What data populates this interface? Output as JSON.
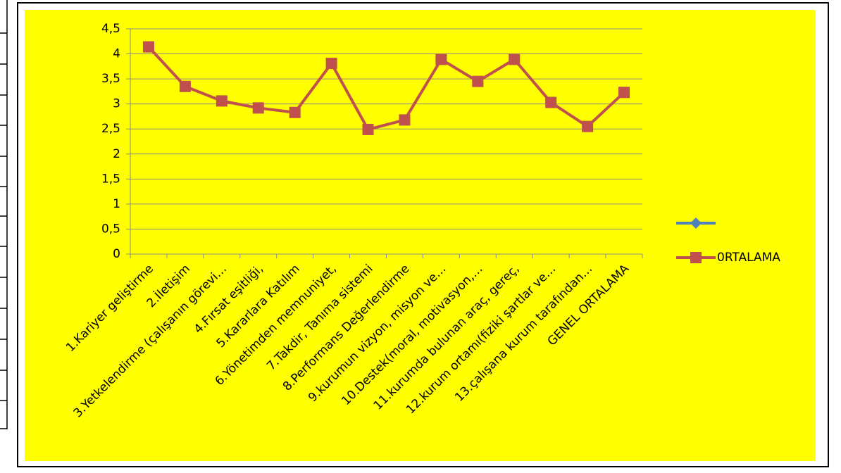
{
  "chart_data": {
    "type": "line",
    "categories": [
      "1.Kariyer geliştirme",
      "2.İletişim",
      "3.Yetkelendirme (çalışanın görevi…",
      "4.Fırsat eşitliği,",
      "5.Kararlara Katılım",
      "6.Yönetimden memnuniyet,",
      "7.Takdir, Tanıma sistemi",
      "8.Performans Değerlendirme",
      "9.kurumun vizyon, misyon ve…",
      "10.Destek(moral, motivasyon,…",
      "11.kurumda bulunan araç, gereç,",
      "12.kurum ortamı(fiziki şartlar ve…",
      "13.çalışana kurum tarafından…",
      "GENEL ORTALAMA"
    ],
    "series": [
      {
        "name": null,
        "color": "#4f81bd",
        "marker": "diamond",
        "values": [
          null,
          null,
          null,
          null,
          null,
          null,
          null,
          null,
          null,
          null,
          null,
          null,
          null,
          null
        ]
      },
      {
        "name": "0RTALAMA",
        "color": "#c0504d",
        "marker": "square",
        "values": [
          4.14,
          3.35,
          3.06,
          2.92,
          2.83,
          3.81,
          2.49,
          2.68,
          3.89,
          3.45,
          3.89,
          3.03,
          2.55,
          3.23
        ]
      }
    ],
    "ylim": [
      0,
      4.5
    ],
    "yticks": [
      0,
      {
        "value": 0.5,
        "label": "0,5"
      },
      1,
      {
        "value": 1.5,
        "label": "1,5"
      },
      2,
      {
        "value": 2.5,
        "label": "2,5"
      },
      3,
      {
        "value": 3.5,
        "label": "3,5"
      },
      4,
      {
        "value": 4.5,
        "label": "4,5"
      }
    ],
    "grid": true,
    "legend": "right",
    "background": "#ffff00"
  }
}
